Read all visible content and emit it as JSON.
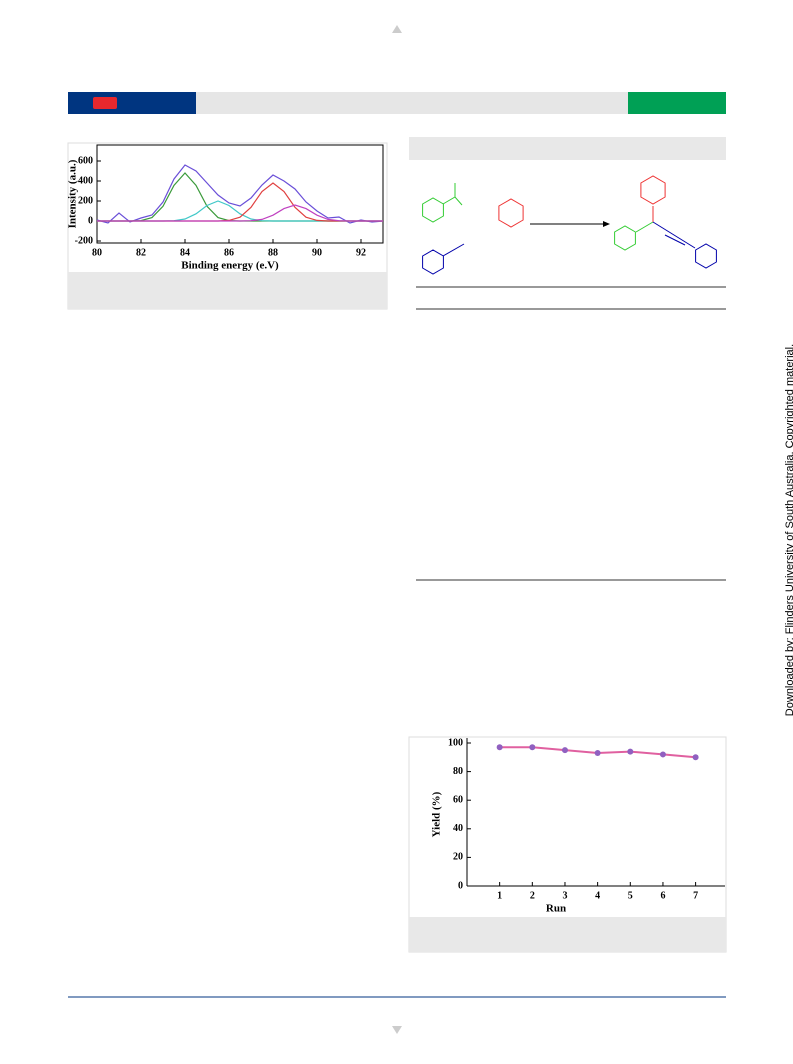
{
  "watermark": "Downloaded by: Flinders University of South Australia. Copyrighted material.",
  "chart_data": [
    {
      "type": "line",
      "xlabel": "Binding energy (e.V)",
      "ylabel": "Intensity (a.u.)",
      "x": [
        80,
        80.5,
        81,
        81.5,
        82,
        82.5,
        83,
        83.5,
        84,
        84.5,
        85,
        85.5,
        86,
        86.5,
        87,
        87.5,
        88,
        88.5,
        89,
        89.5,
        90,
        90.5,
        91,
        91.5,
        92,
        92.5,
        93
      ],
      "series": [
        {
          "color": "#6a4fd8",
          "values": [
            10,
            -20,
            80,
            -10,
            30,
            60,
            190,
            420,
            560,
            500,
            380,
            260,
            180,
            150,
            230,
            360,
            460,
            400,
            320,
            190,
            100,
            30,
            40,
            -20,
            10,
            -10,
            0
          ]
        },
        {
          "color": "#3a9a3a",
          "values": [
            0,
            0,
            0,
            0,
            4,
            34,
            147,
            357,
            480,
            357,
            147,
            34,
            4,
            0,
            0,
            0,
            0,
            0,
            0,
            0,
            0,
            0,
            0,
            0,
            0,
            0,
            0
          ]
        },
        {
          "color": "#40c8c8",
          "values": [
            0,
            0,
            0,
            0,
            0,
            0,
            0,
            3,
            20,
            72,
            155,
            200,
            155,
            72,
            20,
            3,
            0,
            0,
            0,
            0,
            0,
            0,
            0,
            0,
            0,
            0,
            0
          ]
        },
        {
          "color": "#e04040",
          "values": [
            0,
            0,
            0,
            0,
            0,
            0,
            0,
            0,
            0,
            0,
            0,
            0,
            6,
            38,
            137,
            295,
            380,
            295,
            137,
            38,
            6,
            0,
            0,
            0,
            0,
            0,
            0
          ]
        },
        {
          "color": "#c040c0",
          "values": [
            0,
            0,
            0,
            0,
            0,
            0,
            0,
            0,
            0,
            0,
            0,
            0,
            0,
            0,
            3,
            16,
            58,
            124,
            160,
            124,
            58,
            16,
            3,
            0,
            0,
            0,
            0
          ]
        }
      ],
      "xlim": [
        80,
        93
      ],
      "xticks": [
        80,
        82,
        84,
        86,
        88,
        90,
        92
      ],
      "ylim": [
        -220,
        760
      ],
      "yticks": [
        -200,
        0,
        200,
        400,
        600
      ]
    },
    {
      "type": "line",
      "xlabel": "Run",
      "ylabel": "Yield (%)",
      "x": [
        1,
        2,
        3,
        4,
        5,
        6,
        7
      ],
      "series": [
        {
          "color": "#e060a0",
          "marker_color": "#9060c0",
          "values": [
            97,
            97,
            95,
            93,
            94,
            92,
            90
          ]
        }
      ],
      "xlim": [
        0,
        7.9
      ],
      "xticks": [
        1,
        2,
        3,
        4,
        5,
        6,
        7
      ],
      "ylim": [
        0,
        100
      ],
      "yticks": [
        0,
        20,
        40,
        60,
        80,
        100
      ]
    }
  ]
}
